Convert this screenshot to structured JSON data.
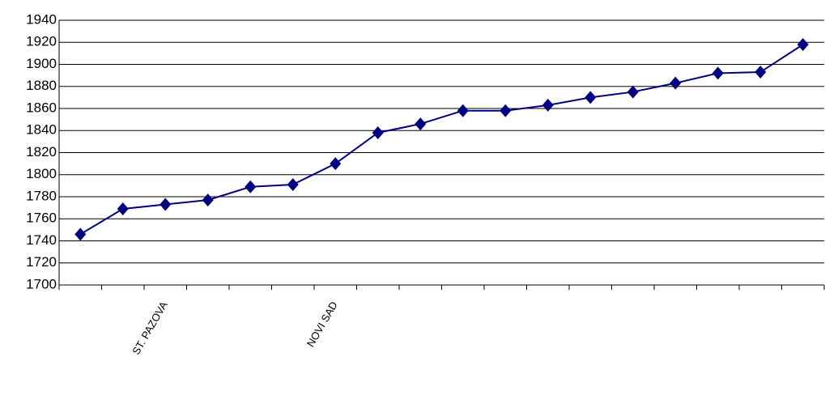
{
  "chart_data": {
    "type": "line",
    "categories": [
      "",
      null,
      "ST. PAZOVA",
      null,
      "",
      null,
      "NOVI SAD",
      null,
      "",
      null,
      "",
      null,
      "",
      null,
      "",
      null,
      "",
      null
    ],
    "series": [
      {
        "name": "",
        "color": "#000080",
        "values": [
          1746,
          1769,
          1773,
          1777,
          1789,
          1791,
          1810,
          1838,
          1846,
          1858,
          1858,
          1863,
          1870,
          1875,
          1883,
          1892,
          1893,
          1918
        ]
      }
    ],
    "ylim": [
      1700,
      1940
    ],
    "yticks": [
      1700,
      1720,
      1740,
      1760,
      1780,
      1800,
      1820,
      1840,
      1860,
      1880,
      1900,
      1920,
      1940
    ],
    "grid": true
  }
}
